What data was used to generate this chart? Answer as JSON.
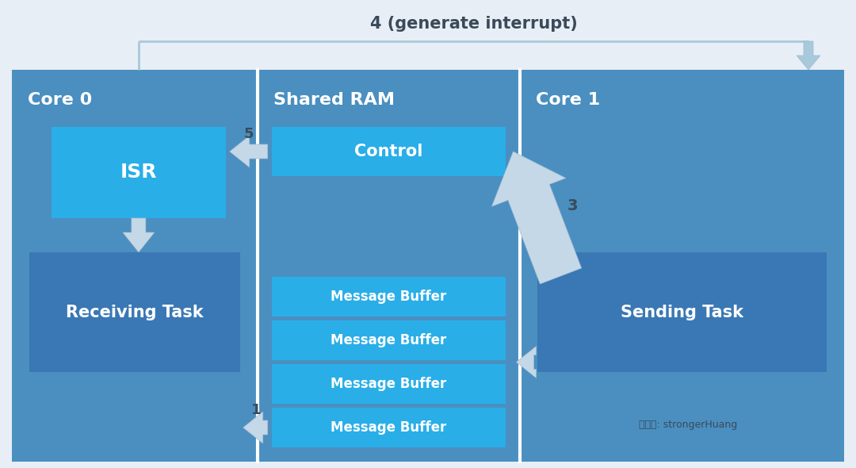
{
  "bg_color": "#e8eef5",
  "panel_color": "#4a8fc0",
  "box_bright_color": "#29aee8",
  "box_dark_color": "#3a78b5",
  "white": "#ffffff",
  "arrow_fill": "#c5d8e8",
  "arrow_edge": "#a0bcd0",
  "title_text": "4 (generate interrupt)",
  "title_color": "#3a4a5a",
  "core0_label": "Core 0",
  "core1_label": "Core 1",
  "shared_ram_label": "Shared RAM",
  "isr_label": "ISR",
  "receiving_task_label": "Receiving Task",
  "sending_task_label": "Sending Task",
  "control_label": "Control",
  "msg_buffer_label": "Message Buffer",
  "watermark_text": "微信号: strongerHuang",
  "num_msg_buffers": 4
}
